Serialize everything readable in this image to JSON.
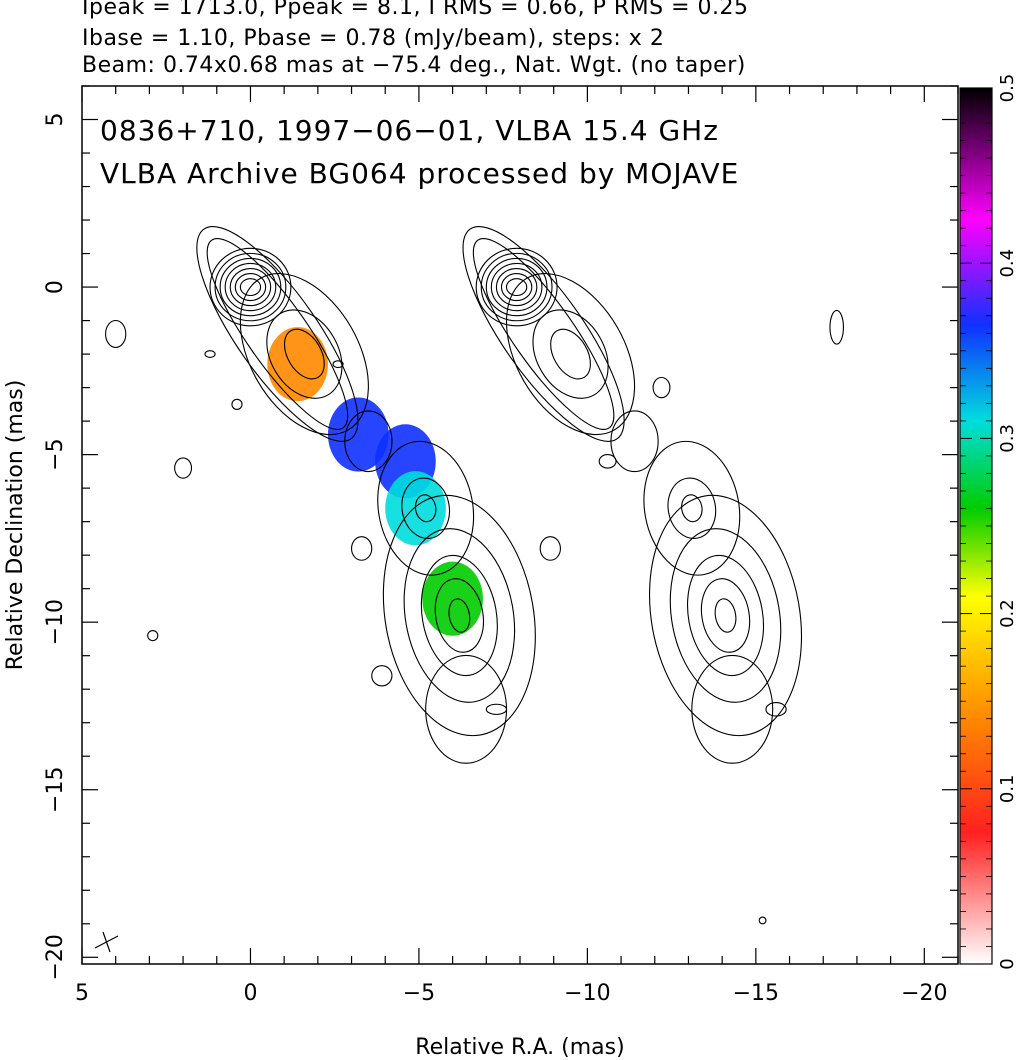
{
  "header": {
    "line1": "Ipeak = 1713.0, Ppeak = 8.1, I RMS = 0.66, P RMS = 0.25",
    "line2": "Ibase = 1.10, Pbase = 0.78 (mJy/beam), steps: x 2",
    "line3": "Beam: 0.74x0.68 mas at −75.4 deg., Nat. Wgt. (no taper)"
  },
  "chart_data": {
    "type": "contour map with fractional polarization color overlay",
    "title_line1": "0836+710, 1997−06−01, VLBA 15.4 GHz",
    "title_line2": "VLBA Archive BG064 processed by MOJAVE",
    "xlabel": "Relative R.A. (mas)",
    "ylabel": "Relative Declination (mas)",
    "xlim": [
      5,
      -21
    ],
    "ylim": [
      -20.2,
      6
    ],
    "x_ticks": [
      5,
      0,
      -5,
      -10,
      -15,
      -20
    ],
    "x_tick_labels": [
      "5",
      "0",
      "−5",
      "−10",
      "−15",
      "−20"
    ],
    "y_ticks": [
      5,
      0,
      -5,
      -10,
      -15,
      -20
    ],
    "y_tick_labels": [
      "5",
      "0",
      "−5",
      "−10",
      "−15",
      "−20"
    ],
    "colorbar": {
      "range": [
        0,
        0.5
      ],
      "ticks": [
        0,
        0.1,
        0.2,
        0.3,
        0.4,
        0.5
      ],
      "tick_labels": [
        "0",
        "0.1",
        "0.2",
        "0.3",
        "0.4",
        "0.5"
      ],
      "colors": [
        "#ffffff",
        "#ff2020",
        "#ff8800",
        "#ffff00",
        "#00cc00",
        "#00dddd",
        "#1030ff",
        "#ff00ff",
        "#000000"
      ]
    },
    "left_panel_components": [
      {
        "x": 0.0,
        "y": 0.0,
        "note": "core peak"
      },
      {
        "x": -1.6,
        "y": -2.0
      },
      {
        "x": -5.2,
        "y": -6.6
      },
      {
        "x": -6.2,
        "y": -9.8
      }
    ],
    "right_panel_offset_x": -7.9,
    "polarization_patches": [
      {
        "x": -1.4,
        "y": -2.3,
        "level": 0.12
      },
      {
        "x": -3.2,
        "y": -4.4,
        "level": 0.38
      },
      {
        "x": -4.6,
        "y": -5.2,
        "level": 0.36
      },
      {
        "x": -4.9,
        "y": -6.6,
        "level": 0.32
      },
      {
        "x": -6.0,
        "y": -9.3,
        "level": 0.22
      }
    ]
  }
}
